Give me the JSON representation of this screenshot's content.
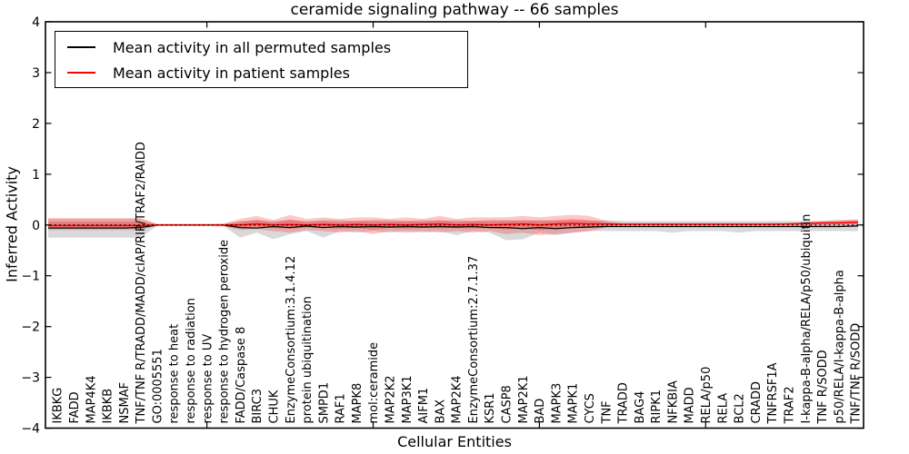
{
  "title": "ceramide signaling pathway -- 66 samples",
  "legend": {
    "items": [
      {
        "label": "Mean activity in all permuted samples",
        "color": "#000000"
      },
      {
        "label": "Mean activity in patient samples",
        "color": "#ff0000"
      }
    ]
  },
  "chart_data": {
    "type": "line",
    "title": "ceramide signaling pathway -- 66 samples",
    "xlabel": "Cellular Entities",
    "ylabel": "Inferred Activity",
    "ylim": [
      -4,
      4
    ],
    "yticks": [
      4,
      3,
      2,
      1,
      0,
      -1,
      -2,
      -3,
      -4
    ],
    "x_major_ticks_at": [
      10,
      20,
      30,
      40
    ],
    "grid": false,
    "legend_position": "upper left",
    "zero_line": {
      "y": 0,
      "style": "dotted",
      "color": "#000000"
    },
    "band_colors": {
      "permuted": "rgba(128,128,128,0.30)",
      "patient_outer": "rgba(255,0,0,0.22)",
      "patient_inner": "rgba(255,0,0,0.26)"
    },
    "categories": [
      "IKBKG",
      "FADD",
      "MAP4K4",
      "IKBKB",
      "NSMAF",
      "TNF/TNF R/TRADD/MADD/cIAP/RIP/TRAF2/RAIDD",
      "GO:0005551",
      "response to heat",
      "response to radiation",
      "response to UV",
      "response to hydrogen peroxide",
      "FADD/Caspase 8",
      "BIRC3",
      "CHUK",
      "EnzymeConsortium:3.1.4.12",
      "protein ubiquitination",
      "SMPD1",
      "RAF1",
      "MAPK8",
      "mol:ceramide",
      "MAP2K2",
      "MAP3K1",
      "AIFM1",
      "BAX",
      "MAP2K4",
      "EnzymeConsortium:2.7.1.37",
      "KSR1",
      "CASP8",
      "MAP2K1",
      "BAD",
      "MAPK3",
      "MAPK1",
      "CYCS",
      "TNF",
      "TRADD",
      "BAG4",
      "RIPK1",
      "NFKBIA",
      "MADD",
      "RELA/p50",
      "RELA",
      "BCL2",
      "CRADD",
      "TNFRSF1A",
      "TRAF2",
      "I-kappa-B-alpha/RELA/p50/ubiquitin",
      "TNF R/SODD",
      "p50/RELA/I-kappa-B-alpha",
      "TNF/TNF R/SODD"
    ],
    "series": [
      {
        "name": "Mean activity in all permuted samples",
        "color": "#000000",
        "style": "solid",
        "values": [
          -0.06,
          -0.06,
          -0.06,
          -0.06,
          -0.06,
          -0.05,
          0,
          0,
          0,
          0,
          0,
          -0.05,
          -0.06,
          -0.03,
          -0.05,
          -0.02,
          -0.05,
          -0.03,
          -0.04,
          -0.03,
          -0.04,
          -0.03,
          -0.04,
          -0.03,
          -0.04,
          -0.03,
          -0.05,
          -0.05,
          -0.07,
          -0.05,
          -0.07,
          -0.05,
          -0.04,
          -0.03,
          -0.03,
          -0.03,
          -0.03,
          -0.03,
          -0.03,
          -0.03,
          -0.03,
          -0.03,
          -0.03,
          -0.03,
          -0.03,
          -0.03,
          -0.03,
          -0.03,
          -0.02
        ],
        "band": {
          "lo": [
            -0.25,
            -0.25,
            -0.25,
            -0.25,
            -0.25,
            -0.25,
            -0.02,
            -0.02,
            -0.02,
            -0.02,
            -0.02,
            -0.25,
            -0.15,
            -0.28,
            -0.18,
            -0.12,
            -0.25,
            -0.12,
            -0.15,
            -0.12,
            -0.15,
            -0.12,
            -0.15,
            -0.12,
            -0.2,
            -0.12,
            -0.15,
            -0.3,
            -0.28,
            -0.15,
            -0.2,
            -0.15,
            -0.12,
            -0.12,
            -0.12,
            -0.12,
            -0.12,
            -0.15,
            -0.12,
            -0.12,
            -0.12,
            -0.15,
            -0.12,
            -0.12,
            -0.12,
            -0.12,
            -0.12,
            -0.12,
            -0.12
          ],
          "hi": [
            0.12,
            0.12,
            0.12,
            0.12,
            0.12,
            0.12,
            0.02,
            0.02,
            0.02,
            0.02,
            0.02,
            0.08,
            0.1,
            0.08,
            0.1,
            0.08,
            0.1,
            0.1,
            0.08,
            0.1,
            0.1,
            0.08,
            0.1,
            0.08,
            0.1,
            0.08,
            0.1,
            0.1,
            0.08,
            0.1,
            0.08,
            0.1,
            0.08,
            0.1,
            0.08,
            0.08,
            0.08,
            0.08,
            0.08,
            0.08,
            0.08,
            0.08,
            0.08,
            0.08,
            0.08,
            0.08,
            0.08,
            0.1,
            0.1
          ]
        }
      },
      {
        "name": "Mean activity in patient samples",
        "color": "#ff0000",
        "style": "solid",
        "values": [
          -0.01,
          -0.01,
          -0.01,
          -0.01,
          -0.01,
          -0.01,
          0,
          0,
          0,
          0,
          0,
          0,
          0.02,
          0,
          0.01,
          0,
          0.01,
          0,
          0.01,
          0,
          0.01,
          0,
          0.01,
          0.02,
          0,
          0.01,
          0,
          0.01,
          0.02,
          0,
          0.02,
          0.03,
          0.02,
          0.02,
          0.015,
          0.015,
          0.015,
          0.015,
          0.015,
          0.015,
          0.015,
          0.015,
          0.015,
          0.015,
          0.02,
          0.03,
          0.04,
          0.04,
          0.05
        ],
        "band": {
          "lo": [
            -0.1,
            -0.1,
            -0.1,
            -0.1,
            -0.1,
            -0.1,
            -0.02,
            -0.02,
            -0.02,
            -0.02,
            -0.03,
            -0.1,
            -0.08,
            -0.12,
            -0.15,
            -0.1,
            -0.12,
            -0.15,
            -0.12,
            -0.18,
            -0.12,
            -0.15,
            -0.12,
            -0.15,
            -0.12,
            -0.15,
            -0.12,
            -0.18,
            -0.15,
            -0.2,
            -0.18,
            -0.15,
            -0.12,
            -0.05,
            -0.01,
            -0.01,
            -0.01,
            -0.01,
            -0.01,
            -0.01,
            -0.01,
            -0.01,
            -0.01,
            -0.01,
            -0.01,
            -0.02,
            -0.02,
            -0.01,
            0
          ],
          "hi": [
            0.14,
            0.14,
            0.14,
            0.14,
            0.14,
            0.14,
            0.02,
            0.02,
            0.02,
            0.02,
            0.03,
            0.12,
            0.18,
            0.1,
            0.2,
            0.12,
            0.15,
            0.12,
            0.15,
            0.15,
            0.12,
            0.15,
            0.12,
            0.18,
            0.12,
            0.15,
            0.15,
            0.15,
            0.18,
            0.15,
            0.18,
            0.2,
            0.18,
            0.08,
            0.04,
            0.04,
            0.04,
            0.04,
            0.04,
            0.04,
            0.04,
            0.04,
            0.04,
            0.04,
            0.04,
            0.06,
            0.08,
            0.09,
            0.11
          ]
        }
      }
    ]
  }
}
